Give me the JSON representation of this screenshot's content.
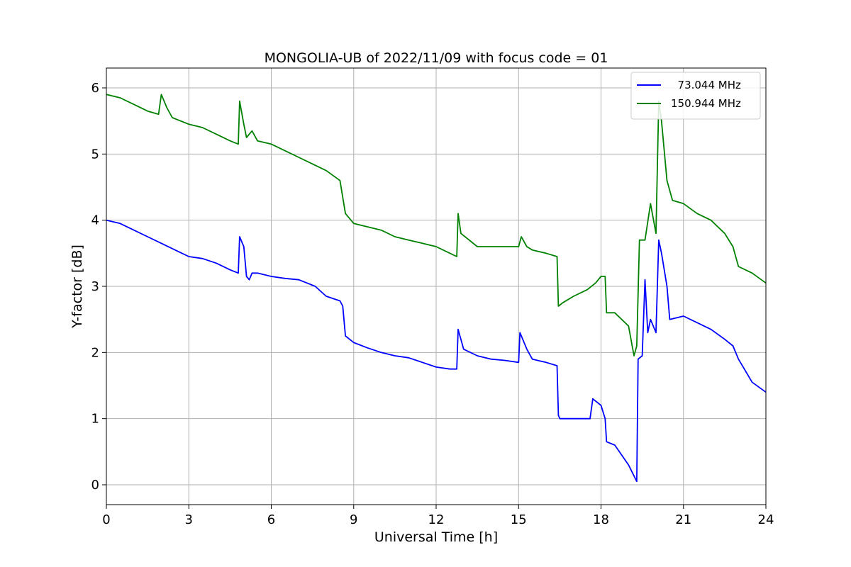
{
  "chart_data": {
    "type": "line",
    "title": "MONGOLIA-UB of 2022/11/09 with focus code = 01",
    "xlabel": "Universal Time [h]",
    "ylabel": "Y-factor [dB]",
    "xlim": [
      0,
      24
    ],
    "ylim": [
      -0.3,
      6.3
    ],
    "xticks": [
      0,
      3,
      6,
      9,
      12,
      15,
      18,
      21,
      24
    ],
    "yticks": [
      0,
      1,
      2,
      3,
      4,
      5,
      6
    ],
    "grid": true,
    "legend_position": "top-right",
    "series": [
      {
        "name": "  73.044 MHz",
        "color": "#0000ff",
        "x": [
          0,
          0.5,
          1,
          1.5,
          2,
          2.5,
          3,
          3.5,
          4,
          4.5,
          4.8,
          4.85,
          5.0,
          5.1,
          5.2,
          5.3,
          5.5,
          6,
          6.5,
          7,
          7.3,
          7.6,
          8,
          8.5,
          8.6,
          8.7,
          9,
          9.5,
          10,
          10.5,
          11,
          11.5,
          12,
          12.5,
          12.75,
          12.8,
          13,
          13.5,
          14,
          14.5,
          15,
          15.05,
          15.3,
          15.5,
          16,
          16.4,
          16.45,
          16.5,
          17,
          17.5,
          17.6,
          17.7,
          18,
          18.15,
          18.2,
          18.5,
          19,
          19.3,
          19.35,
          19.5,
          19.6,
          19.7,
          19.8,
          20,
          20.1,
          20.2,
          20.4,
          20.5,
          21,
          21.5,
          22,
          22.5,
          22.8,
          23,
          23.5,
          24
        ],
        "y": [
          4.0,
          3.95,
          3.85,
          3.75,
          3.65,
          3.55,
          3.45,
          3.42,
          3.35,
          3.25,
          3.2,
          3.75,
          3.6,
          3.15,
          3.1,
          3.2,
          3.2,
          3.15,
          3.12,
          3.1,
          3.05,
          3.0,
          2.85,
          2.78,
          2.7,
          2.25,
          2.15,
          2.07,
          2.0,
          1.95,
          1.92,
          1.85,
          1.78,
          1.75,
          1.75,
          2.35,
          2.05,
          1.95,
          1.9,
          1.88,
          1.85,
          2.3,
          2.05,
          1.9,
          1.85,
          1.8,
          1.05,
          1.0,
          1.0,
          1.0,
          1.0,
          1.3,
          1.2,
          1.0,
          0.65,
          0.6,
          0.3,
          0.05,
          1.9,
          1.95,
          3.1,
          2.3,
          2.5,
          2.3,
          3.7,
          3.5,
          3.0,
          2.5,
          2.55,
          2.45,
          2.35,
          2.2,
          2.1,
          1.9,
          1.55,
          1.4
        ]
      },
      {
        "name": "150.944 MHz",
        "color": "#008000",
        "x": [
          0,
          0.5,
          1,
          1.5,
          1.9,
          2.0,
          2.2,
          2.4,
          3,
          3.5,
          4,
          4.5,
          4.8,
          4.85,
          5.0,
          5.1,
          5.3,
          5.5,
          6,
          6.5,
          7,
          7.5,
          8,
          8.5,
          8.7,
          9,
          9.5,
          10,
          10.5,
          11,
          11.5,
          12,
          12.5,
          12.75,
          12.8,
          12.9,
          13.5,
          14,
          14.5,
          15,
          15.1,
          15.3,
          15.5,
          16,
          16.4,
          16.45,
          16.6,
          17,
          17.5,
          17.8,
          18,
          18.15,
          18.2,
          18.5,
          19,
          19.2,
          19.3,
          19.4,
          19.6,
          19.8,
          20,
          20.1,
          20.2,
          20.4,
          20.6,
          21,
          21.5,
          22,
          22.5,
          22.8,
          23,
          23.5,
          24
        ],
        "y": [
          5.9,
          5.85,
          5.75,
          5.65,
          5.6,
          5.9,
          5.7,
          5.55,
          5.45,
          5.4,
          5.3,
          5.2,
          5.15,
          5.8,
          5.45,
          5.25,
          5.35,
          5.2,
          5.15,
          5.05,
          4.95,
          4.85,
          4.75,
          4.6,
          4.1,
          3.95,
          3.9,
          3.85,
          3.75,
          3.7,
          3.65,
          3.6,
          3.5,
          3.45,
          4.1,
          3.8,
          3.6,
          3.6,
          3.6,
          3.6,
          3.75,
          3.6,
          3.55,
          3.5,
          3.45,
          2.7,
          2.75,
          2.85,
          2.95,
          3.05,
          3.15,
          3.15,
          2.6,
          2.6,
          2.4,
          1.95,
          2.1,
          3.7,
          3.7,
          4.25,
          3.8,
          5.8,
          5.5,
          4.6,
          4.3,
          4.25,
          4.1,
          4.0,
          3.8,
          3.6,
          3.3,
          3.2,
          3.05
        ]
      }
    ]
  }
}
